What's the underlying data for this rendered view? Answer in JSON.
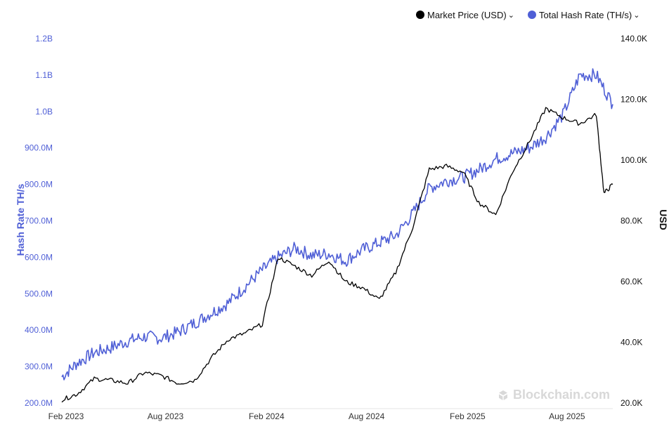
{
  "legend": {
    "price_label": "Market Price (USD)",
    "hash_label": "Total Hash Rate (TH/s)",
    "price_color": "#000000",
    "hash_color": "#4f5fd6"
  },
  "watermark": {
    "text": "Blockchain.com",
    "icon": "blockchain-logo-icon"
  },
  "chart_data": {
    "type": "line",
    "title": "",
    "x_ticks": [
      "Feb 2023",
      "Aug 2023",
      "Feb 2024",
      "Aug 2024",
      "Feb 2025",
      "Aug 2025"
    ],
    "x_range": [
      "2023-02-01",
      "2025-10-31"
    ],
    "y_left": {
      "label": "Hash Rate TH/s",
      "ticks": [
        "200.0M",
        "300.0M",
        "400.0M",
        "500.0M",
        "600.0M",
        "700.0M",
        "800.0M",
        "900.0M",
        "1.0B",
        "1.1B",
        "1.2B"
      ],
      "range": [
        200000000,
        1200000000
      ],
      "color": "#4f5fd6"
    },
    "y_right": {
      "label": "USD",
      "ticks": [
        "20.0K",
        "40.0K",
        "60.0K",
        "80.0K",
        "100.0K",
        "120.0K",
        "140.0K"
      ],
      "range": [
        20000,
        140000
      ],
      "color": "#111111"
    },
    "grid": false,
    "series": [
      {
        "name": "Total Hash Rate (TH/s)",
        "axis": "left",
        "color": "#4f5fd6",
        "points": [
          [
            "2023-02-01",
            272000000
          ],
          [
            "2023-03-01",
            310000000
          ],
          [
            "2023-04-01",
            338000000
          ],
          [
            "2023-05-01",
            352000000
          ],
          [
            "2023-06-01",
            370000000
          ],
          [
            "2023-07-01",
            382000000
          ],
          [
            "2023-08-01",
            378000000
          ],
          [
            "2023-09-01",
            395000000
          ],
          [
            "2023-10-01",
            420000000
          ],
          [
            "2023-11-01",
            448000000
          ],
          [
            "2023-12-01",
            475000000
          ],
          [
            "2024-01-01",
            520000000
          ],
          [
            "2024-02-01",
            565000000
          ],
          [
            "2024-03-01",
            600000000
          ],
          [
            "2024-04-01",
            625000000
          ],
          [
            "2024-05-01",
            605000000
          ],
          [
            "2024-06-01",
            610000000
          ],
          [
            "2024-07-01",
            590000000
          ],
          [
            "2024-08-01",
            620000000
          ],
          [
            "2024-09-01",
            640000000
          ],
          [
            "2024-10-01",
            660000000
          ],
          [
            "2024-11-01",
            720000000
          ],
          [
            "2024-12-01",
            790000000
          ],
          [
            "2025-01-01",
            810000000
          ],
          [
            "2025-02-01",
            820000000
          ],
          [
            "2025-03-01",
            840000000
          ],
          [
            "2025-04-01",
            870000000
          ],
          [
            "2025-05-01",
            885000000
          ],
          [
            "2025-06-01",
            900000000
          ],
          [
            "2025-07-01",
            930000000
          ],
          [
            "2025-08-01",
            990000000
          ],
          [
            "2025-09-01",
            1100000000
          ],
          [
            "2025-10-01",
            1100000000
          ],
          [
            "2025-10-31",
            1020000000
          ]
        ]
      },
      {
        "name": "Market Price (USD)",
        "axis": "right",
        "color": "#000000",
        "points": [
          [
            "2023-02-01",
            21000
          ],
          [
            "2023-03-01",
            23000
          ],
          [
            "2023-04-01",
            28000
          ],
          [
            "2023-05-01",
            27500
          ],
          [
            "2023-06-01",
            26500
          ],
          [
            "2023-07-01",
            30000
          ],
          [
            "2023-08-01",
            29000
          ],
          [
            "2023-09-01",
            26500
          ],
          [
            "2023-10-01",
            27500
          ],
          [
            "2023-11-01",
            35000
          ],
          [
            "2023-12-01",
            41000
          ],
          [
            "2024-01-01",
            43000
          ],
          [
            "2024-02-01",
            46000
          ],
          [
            "2024-03-01",
            68000
          ],
          [
            "2024-04-01",
            65000
          ],
          [
            "2024-05-01",
            62000
          ],
          [
            "2024-06-01",
            67000
          ],
          [
            "2024-07-01",
            60000
          ],
          [
            "2024-08-01",
            58000
          ],
          [
            "2024-09-01",
            54000
          ],
          [
            "2024-10-01",
            63000
          ],
          [
            "2024-11-01",
            78000
          ],
          [
            "2024-12-01",
            97000
          ],
          [
            "2025-01-01",
            98000
          ],
          [
            "2025-02-01",
            96000
          ],
          [
            "2025-03-01",
            86000
          ],
          [
            "2025-04-01",
            82000
          ],
          [
            "2025-05-01",
            96000
          ],
          [
            "2025-06-01",
            106000
          ],
          [
            "2025-07-01",
            117000
          ],
          [
            "2025-08-01",
            114000
          ],
          [
            "2025-09-01",
            112000
          ],
          [
            "2025-10-01",
            115000
          ],
          [
            "2025-10-15",
            89000
          ],
          [
            "2025-10-31",
            92000
          ]
        ]
      }
    ]
  }
}
